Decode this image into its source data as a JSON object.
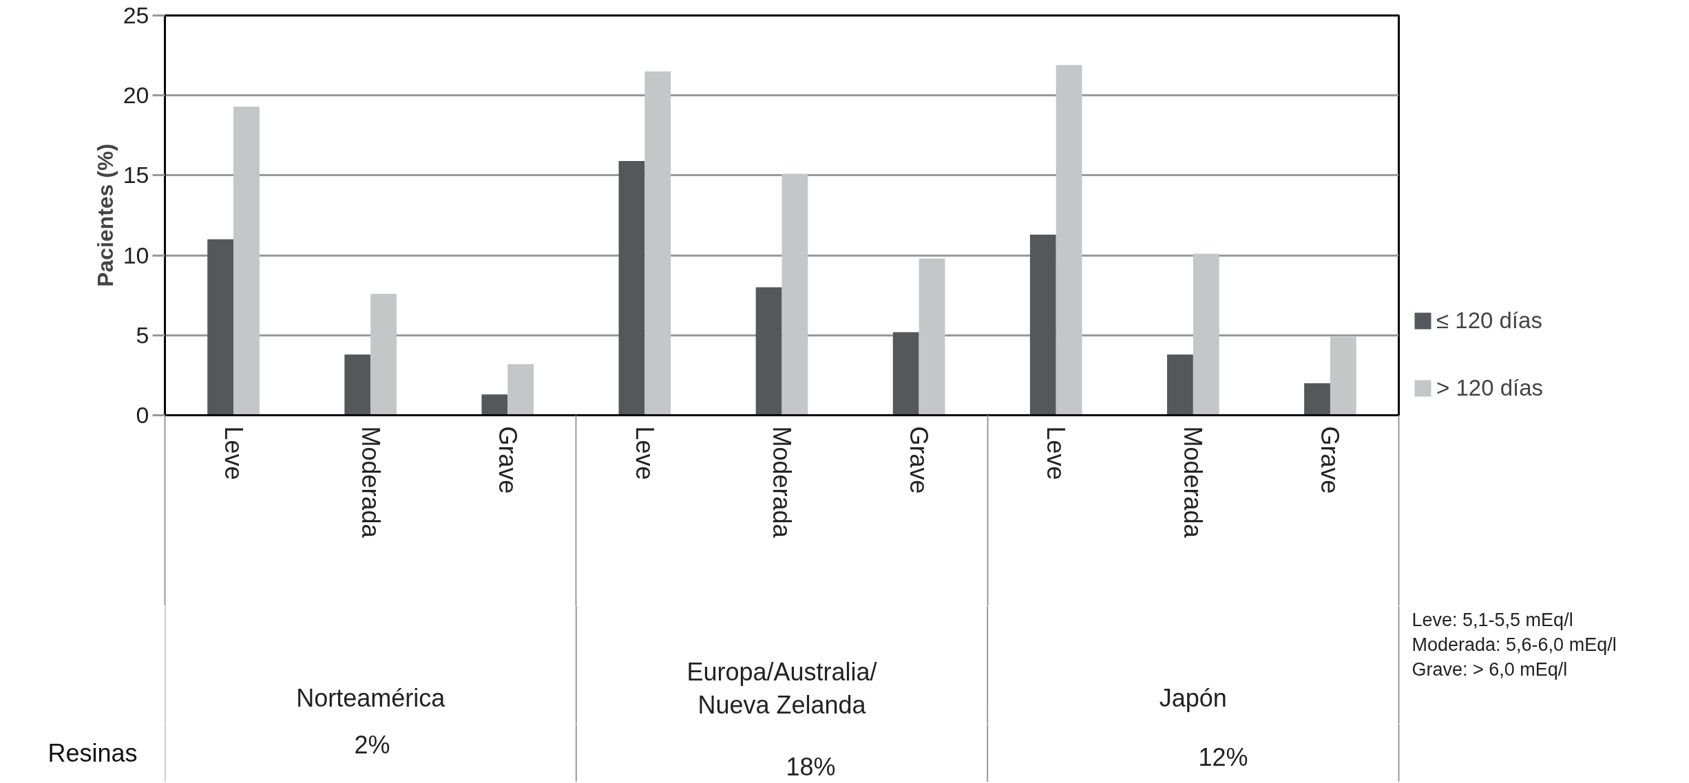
{
  "chart_data": {
    "type": "bar",
    "ylabel": "Pacientes (%)",
    "categories": [
      "Leve",
      "Moderada",
      "Grave",
      "Leve",
      "Moderada",
      "Grave",
      "Leve",
      "Moderada",
      "Grave"
    ],
    "series": [
      {
        "name": "≤ 120 días",
        "color": "#55585b",
        "values": [
          11.0,
          3.8,
          1.3,
          15.9,
          8.0,
          5.2,
          11.3,
          3.8,
          2.0
        ]
      },
      {
        "name": "> 120 días",
        "color": "#c4c6c8",
        "values": [
          19.3,
          7.6,
          3.2,
          21.5,
          15.1,
          9.8,
          21.9,
          10.1,
          4.9
        ]
      }
    ],
    "ylim": [
      0,
      25
    ],
    "yticks": [
      0,
      5,
      10,
      15,
      20,
      25
    ],
    "grid": "y",
    "legend": "right",
    "annotations": [
      "Norteamérica",
      "Europa/Australia/\nNueva Zelanda",
      "Japón",
      "Resinas",
      "2%",
      "18%",
      "12%",
      "Leve: 5,1-5,5 mEq/l",
      "Moderada: 5,6-6,0 mEq/l",
      "Grave:  > 6,0 mEq/l"
    ]
  }
}
